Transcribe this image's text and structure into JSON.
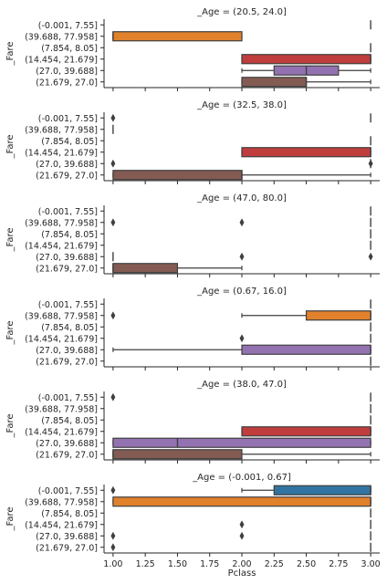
{
  "chart_data": {
    "type": "box",
    "orientation": "horizontal",
    "xlabel": "Pclass",
    "ylabel": "_Fare",
    "xlim": [
      0.93,
      3.07
    ],
    "xticks": [
      "1.00",
      "1.25",
      "1.50",
      "1.75",
      "2.00",
      "2.25",
      "2.50",
      "2.75",
      "3.00"
    ],
    "xtick_values": [
      1.0,
      1.25,
      1.5,
      1.75,
      2.0,
      2.25,
      2.5,
      2.75,
      3.0
    ],
    "categories": [
      "(-0.001, 7.55]",
      "(39.688, 77.958]",
      "(7.854, 8.05]",
      "(14.454, 21.679]",
      "(27.0, 39.688]",
      "(21.679, 27.0]"
    ],
    "category_colors": [
      "#3274a1",
      "#e1812c",
      "#3a923a",
      "#c03d3e",
      "#9372b2",
      "#845b53"
    ],
    "panels": [
      {
        "title": "_Age = (20.5, 24.0]",
        "boxes": [
          {
            "cat": 0,
            "med": 3,
            "outliers": []
          },
          {
            "cat": 1,
            "wlo": 1,
            "q1": 1,
            "med": 1,
            "q3": 2,
            "whi": 2,
            "outliers": []
          },
          {
            "cat": 2,
            "med": 3,
            "outliers": []
          },
          {
            "cat": 3,
            "wlo": 2,
            "q1": 2,
            "med": 3,
            "q3": 3,
            "whi": 3,
            "outliers": []
          },
          {
            "cat": 4,
            "wlo": 2,
            "q1": 2.25,
            "med": 2.5,
            "q3": 2.75,
            "whi": 3,
            "outliers": []
          },
          {
            "cat": 5,
            "wlo": 2,
            "q1": 2,
            "med": 2.5,
            "q3": 2.5,
            "whi": 3,
            "outliers": []
          }
        ]
      },
      {
        "title": "_Age = (32.5, 38.0]",
        "boxes": [
          {
            "cat": 0,
            "med": 3,
            "outliers": [
              1
            ]
          },
          {
            "cat": 1,
            "med": 1,
            "outliers": []
          },
          {
            "cat": 2,
            "med": 3,
            "outliers": []
          },
          {
            "cat": 3,
            "wlo": 2,
            "q1": 2,
            "med": 3,
            "q3": 3,
            "whi": 3,
            "outliers": []
          },
          {
            "cat": 4,
            "med": 3,
            "outliers": [
              1,
              3
            ]
          },
          {
            "cat": 5,
            "wlo": 1,
            "q1": 1,
            "med": 2,
            "q3": 2,
            "whi": 3,
            "outliers": []
          }
        ]
      },
      {
        "title": "_Age = (47.0, 80.0]",
        "boxes": [
          {
            "cat": 0,
            "med": 3,
            "outliers": []
          },
          {
            "cat": 1,
            "med": 3,
            "outliers": [
              1,
              2
            ]
          },
          {
            "cat": 2,
            "med": 3,
            "outliers": []
          },
          {
            "cat": 3,
            "med": 3,
            "outliers": []
          },
          {
            "cat": 4,
            "med": 1,
            "outliers": [
              2,
              3
            ]
          },
          {
            "cat": 5,
            "wlo": 1,
            "q1": 1,
            "med": 1,
            "q3": 1.5,
            "whi": 2,
            "outliers": []
          }
        ]
      },
      {
        "title": "_Age = (0.67, 16.0]",
        "boxes": [
          {
            "cat": 0,
            "med": 3,
            "outliers": []
          },
          {
            "cat": 1,
            "wlo": 2,
            "q1": 2.5,
            "med": 3,
            "q3": 3,
            "whi": 3,
            "outliers": [
              1
            ]
          },
          {
            "cat": 2,
            "med": 3,
            "outliers": []
          },
          {
            "cat": 3,
            "med": 3,
            "outliers": [
              2
            ]
          },
          {
            "cat": 4,
            "wlo": 1,
            "q1": 2,
            "med": 3,
            "q3": 3,
            "whi": 3,
            "outliers": []
          },
          {
            "cat": 5,
            "med": 3,
            "outliers": []
          }
        ]
      },
      {
        "title": "_Age = (38.0, 47.0]",
        "boxes": [
          {
            "cat": 0,
            "med": 3,
            "outliers": [
              1
            ]
          },
          {
            "cat": 1,
            "med": 3,
            "outliers": []
          },
          {
            "cat": 2,
            "med": 3,
            "outliers": []
          },
          {
            "cat": 3,
            "wlo": 2,
            "q1": 2,
            "med": 3,
            "q3": 3,
            "whi": 3,
            "outliers": []
          },
          {
            "cat": 4,
            "wlo": 1,
            "q1": 1,
            "med": 1.5,
            "q3": 3,
            "whi": 3,
            "outliers": []
          },
          {
            "cat": 5,
            "wlo": 1,
            "q1": 1,
            "med": 1,
            "q3": 2,
            "whi": 3,
            "outliers": []
          }
        ]
      },
      {
        "title": "_Age = (-0.001, 0.67]",
        "boxes": [
          {
            "cat": 0,
            "wlo": 2,
            "q1": 2.25,
            "med": 3,
            "q3": 3,
            "whi": 3,
            "outliers": [
              1
            ]
          },
          {
            "cat": 1,
            "wlo": 1,
            "q1": 1,
            "med": 3,
            "q3": 3,
            "whi": 3,
            "outliers": []
          },
          {
            "cat": 2,
            "med": 3,
            "outliers": []
          },
          {
            "cat": 3,
            "med": 3,
            "outliers": [
              2
            ]
          },
          {
            "cat": 4,
            "med": 3,
            "outliers": [
              1,
              2
            ]
          },
          {
            "cat": 5,
            "med": 3,
            "outliers": [
              1
            ]
          }
        ]
      }
    ]
  }
}
